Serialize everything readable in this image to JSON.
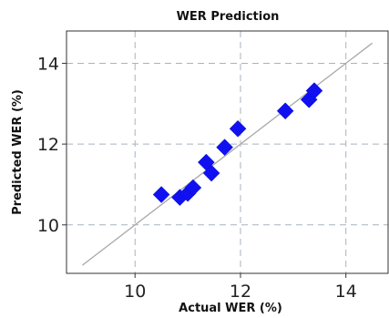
{
  "chart_data": {
    "type": "scatter",
    "title": "WER Prediction",
    "xlabel": "Actual WER (%)",
    "ylabel": "Predicted WER (%)",
    "xlim": [
      8.7,
      14.8
    ],
    "ylim": [
      8.8,
      14.8
    ],
    "xticks": [
      10,
      12,
      14
    ],
    "yticks": [
      10,
      12,
      14
    ],
    "grid": true,
    "marker_color": "#1010f0",
    "marker_shape": "diamond",
    "reference_line": {
      "style": "identity",
      "color": "#a8a8a8",
      "x": [
        9.0,
        14.5
      ],
      "y": [
        9.0,
        14.5
      ]
    },
    "points": [
      {
        "x": 10.5,
        "y": 10.75
      },
      {
        "x": 10.85,
        "y": 10.68
      },
      {
        "x": 11.0,
        "y": 10.78
      },
      {
        "x": 11.1,
        "y": 10.92
      },
      {
        "x": 11.35,
        "y": 11.55
      },
      {
        "x": 11.45,
        "y": 11.28
      },
      {
        "x": 11.7,
        "y": 11.92
      },
      {
        "x": 11.95,
        "y": 12.38
      },
      {
        "x": 12.85,
        "y": 12.82
      },
      {
        "x": 13.3,
        "y": 13.1
      },
      {
        "x": 13.4,
        "y": 13.32
      }
    ]
  }
}
